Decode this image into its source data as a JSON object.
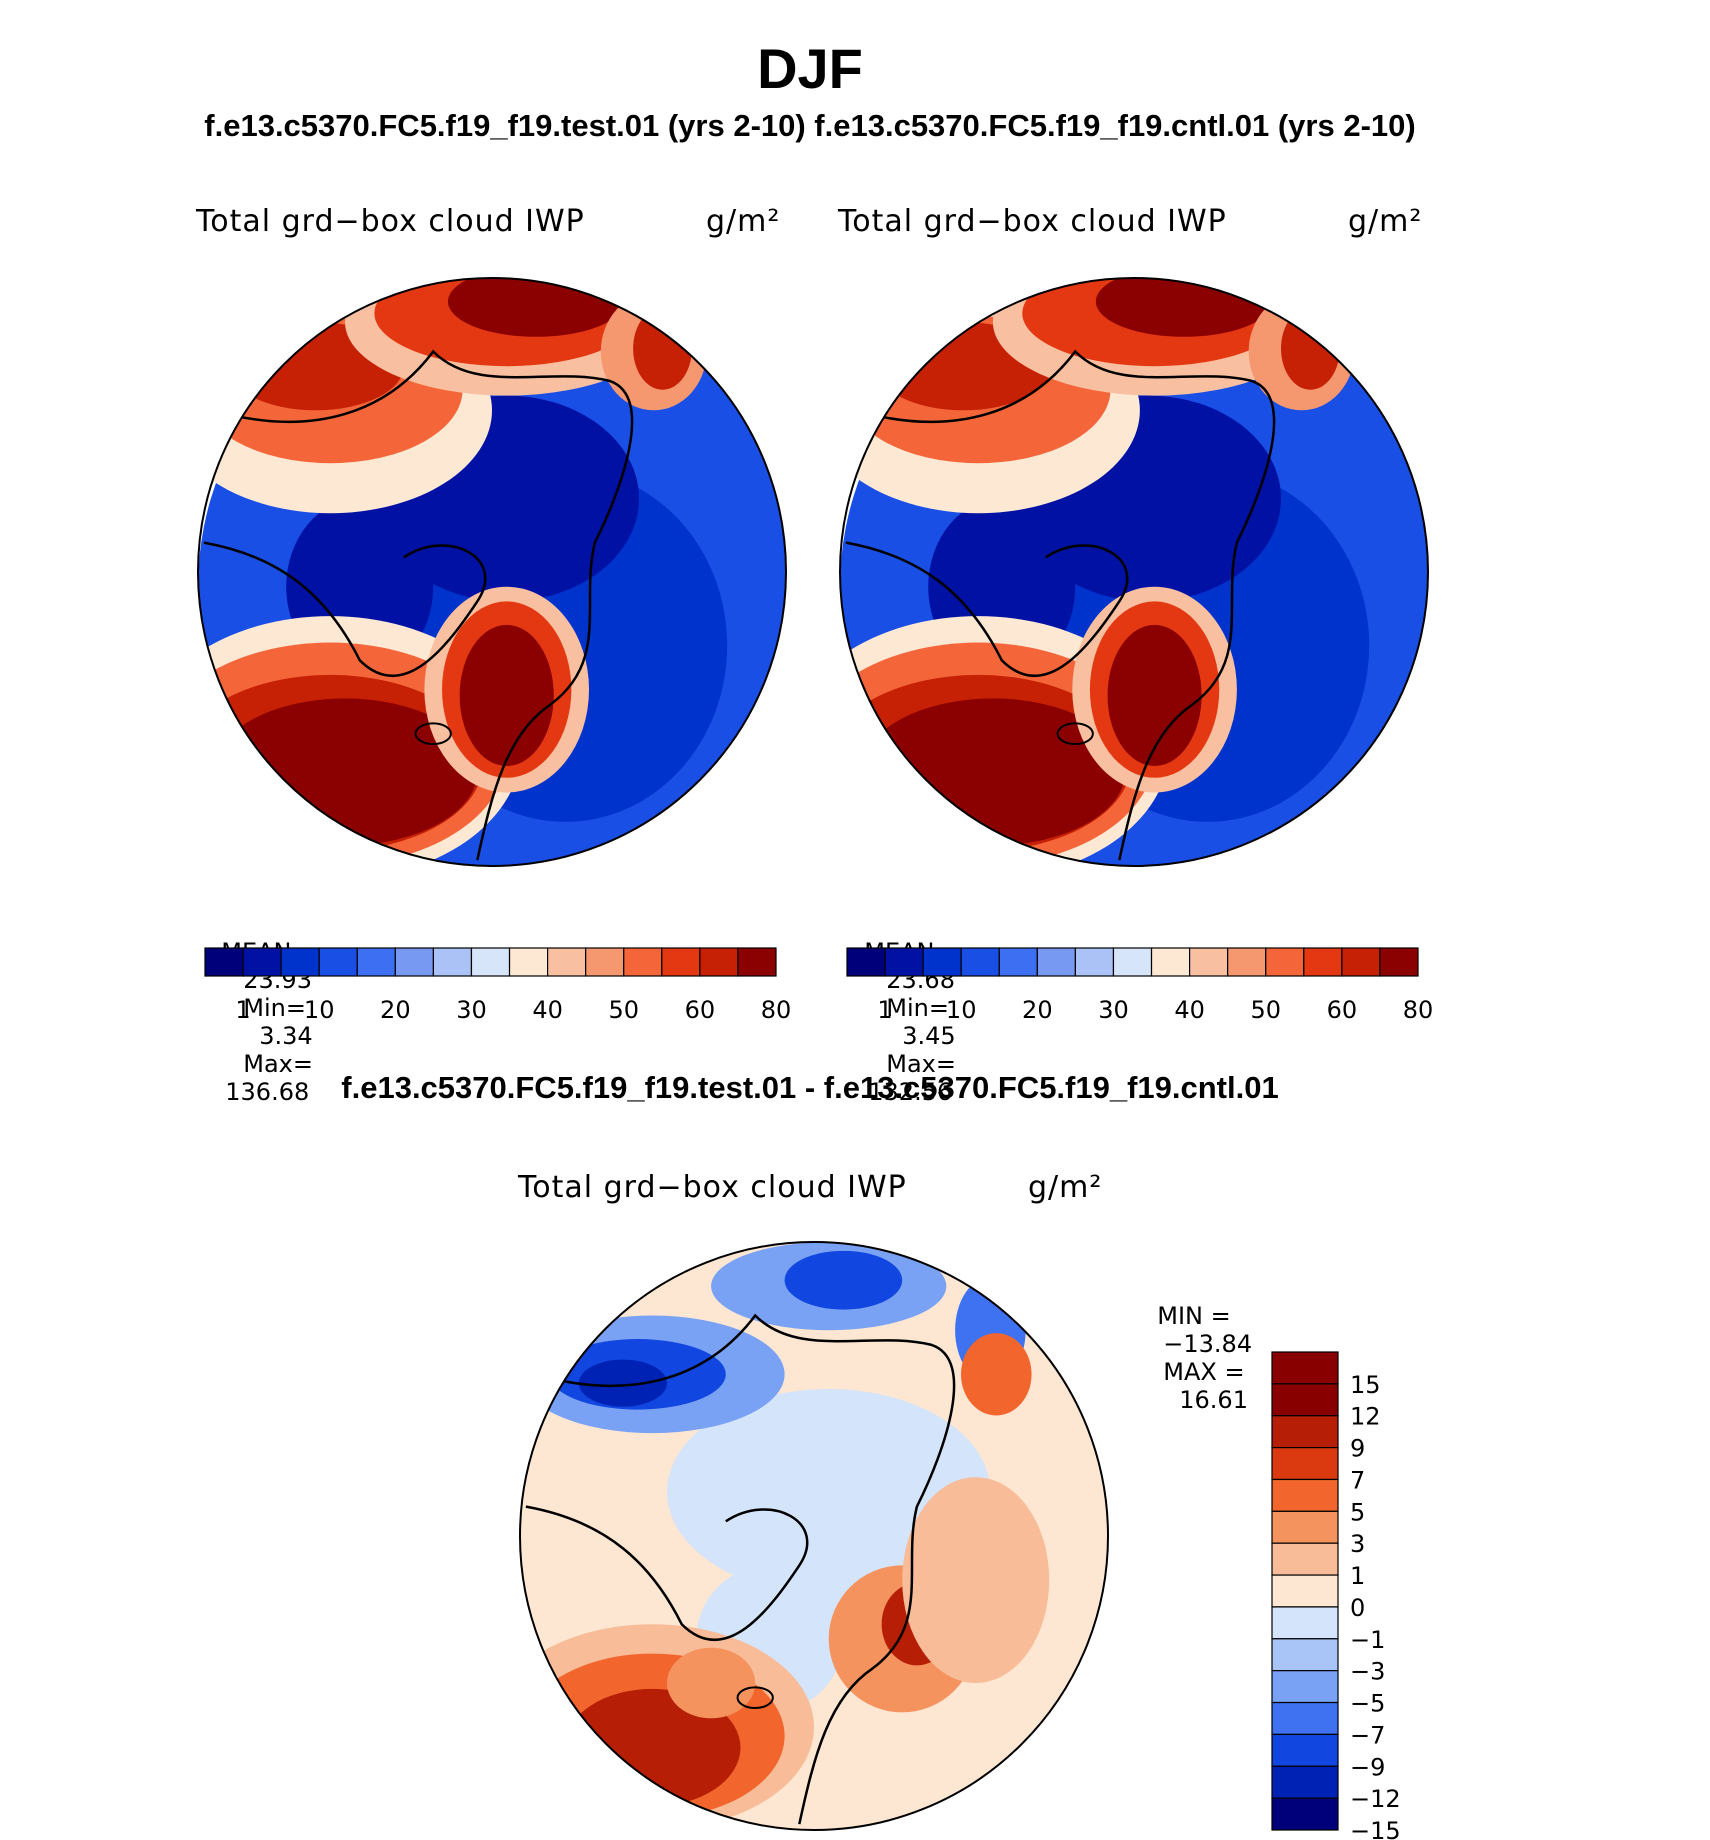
{
  "page": {
    "title": "DJF",
    "subtitle": "f.e13.c5370.FC5.f19_f19.test.01 (yrs 2-10) f.e13.c5370.FC5.f19_f19.cntl.01 (yrs 2-10)",
    "diff_title": "f.e13.c5370.FC5.f19_f19.test.01 - f.e13.c5370.FC5.f19_f19.cntl.01"
  },
  "colors": {
    "field_palette": [
      "#00007a",
      "#0011a4",
      "#0033cc",
      "#1a4fe6",
      "#3d6ff2",
      "#7799f2",
      "#aac2f5",
      "#d6e5fa",
      "#fde8d4",
      "#f8c0a0",
      "#f59870",
      "#f4663a",
      "#e43812",
      "#c62005",
      "#8b0000"
    ],
    "diff_palette": [
      "#00007a",
      "#0022b4",
      "#1147e0",
      "#3f72f0",
      "#7aa2f4",
      "#a9c4f6",
      "#d4e4fa",
      "#fde6d2",
      "#f8bc98",
      "#f5935f",
      "#f2662e",
      "#db3a10",
      "#b61f05",
      "#880000"
    ]
  },
  "chart_data": [
    {
      "type": "polar-contour-map",
      "name": "test",
      "title": "Total grd−box cloud IWP",
      "units": "g/m²",
      "stats": {
        "mean": "23.93",
        "min": "3.34",
        "max": "136.68"
      },
      "stats_labels": {
        "mean": "MEAN=",
        "min": "Min=",
        "max": "Max="
      },
      "colorbar_ticks": [
        "1",
        "10",
        "20",
        "30",
        "40",
        "50",
        "60",
        "80"
      ]
    },
    {
      "type": "polar-contour-map",
      "name": "control",
      "title": "Total grd−box cloud IWP",
      "units": "g/m²",
      "stats": {
        "mean": "23.68",
        "min": "3.45",
        "max": "132.56"
      },
      "stats_labels": {
        "mean": "MEAN=",
        "min": "Min=",
        "max": "Max="
      },
      "colorbar_ticks": [
        "1",
        "10",
        "20",
        "30",
        "40",
        "50",
        "60",
        "80"
      ]
    },
    {
      "type": "polar-contour-map",
      "name": "difference",
      "title": "Total grd−box cloud IWP",
      "units": "g/m²",
      "stats": {
        "min": "−13.84",
        "max": "16.61"
      },
      "stats_labels": {
        "min": "MIN =",
        "max": "MAX ="
      },
      "colorbar_ticks": [
        "15",
        "12",
        "9",
        "7",
        "5",
        "3",
        "1",
        "0",
        "−1",
        "−3",
        "−5",
        "−7",
        "−9",
        "−12",
        "−15"
      ]
    }
  ]
}
